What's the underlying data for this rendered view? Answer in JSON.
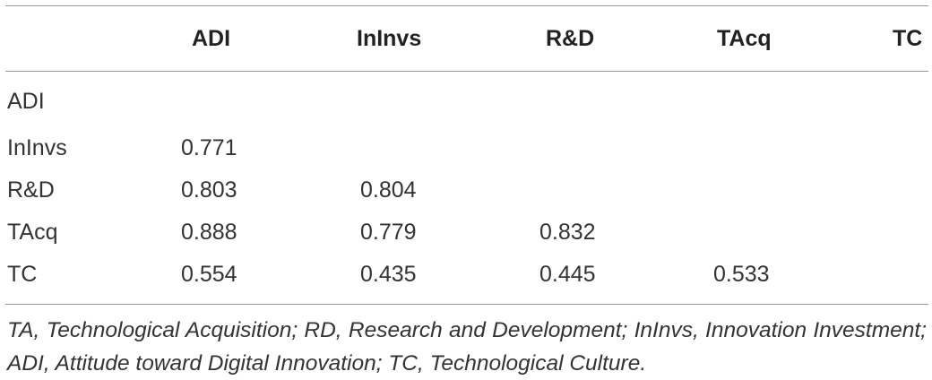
{
  "table": {
    "headers": [
      "",
      "ADI",
      "InInvs",
      "R&D",
      "TAcq",
      "TC"
    ],
    "rows": [
      {
        "label": "ADI",
        "cells": [
          "",
          "",
          "",
          ""
        ]
      },
      {
        "label": "InInvs",
        "cells": [
          "0.771",
          "",
          "",
          ""
        ]
      },
      {
        "label": "R&D",
        "cells": [
          "0.803",
          "0.804",
          "",
          ""
        ]
      },
      {
        "label": "TAcq",
        "cells": [
          "0.888",
          "0.779",
          "0.832",
          ""
        ]
      },
      {
        "label": "TC",
        "cells": [
          "0.554",
          "0.435",
          "0.445",
          "0.533"
        ]
      }
    ],
    "footnote": "TA, Technological Acquisition; RD, Research and Development; InInvs, Innovation Investment; ADI, Attitude toward Digital Innovation; TC, Technological Culture."
  }
}
